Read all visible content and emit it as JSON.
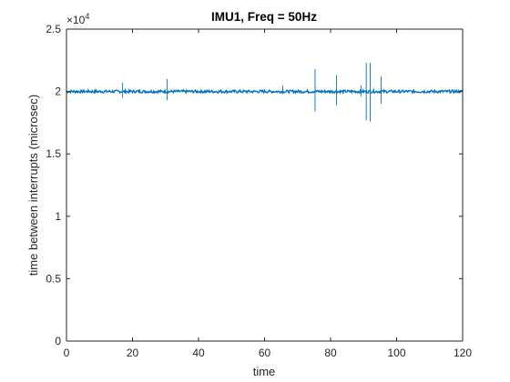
{
  "chart_data": {
    "type": "line",
    "title": "IMU1, Freq = 50Hz",
    "xlabel": "time",
    "ylabel": "time between interrupts (microsec)",
    "xlim": [
      0,
      120
    ],
    "ylim": [
      0,
      25000
    ],
    "y_exponent_label": "×10",
    "y_exponent_power": "4",
    "xticks": [
      0,
      20,
      40,
      60,
      80,
      100,
      120
    ],
    "xtick_labels": [
      "0",
      "20",
      "40",
      "60",
      "80",
      "100",
      "120"
    ],
    "yticks": [
      0,
      5000,
      10000,
      15000,
      20000,
      25000
    ],
    "ytick_labels": [
      "0",
      "0.5",
      "1",
      "1.5",
      "2",
      "2.5"
    ],
    "grid": false,
    "series": [
      {
        "color": "#0072BD",
        "baseline": 20000,
        "spikes": [
          {
            "x": 17.0,
            "y_min": 19500,
            "y_max": 20700
          },
          {
            "x": 30.5,
            "y_min": 19300,
            "y_max": 21000
          },
          {
            "x": 65.5,
            "y_min": 19800,
            "y_max": 20500
          },
          {
            "x": 75.3,
            "y_min": 18400,
            "y_max": 21800
          },
          {
            "x": 81.8,
            "y_min": 18900,
            "y_max": 21300
          },
          {
            "x": 89.2,
            "y_min": 19600,
            "y_max": 20500
          },
          {
            "x": 90.8,
            "y_min": 17700,
            "y_max": 22300
          },
          {
            "x": 92.0,
            "y_min": 17600,
            "y_max": 22300
          },
          {
            "x": 95.3,
            "y_min": 19000,
            "y_max": 21200
          }
        ]
      }
    ]
  },
  "colors": {
    "line": "#0072BD",
    "axes": "#262626",
    "background": "#ffffff"
  }
}
